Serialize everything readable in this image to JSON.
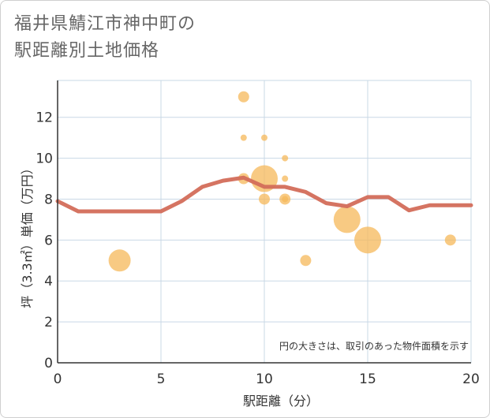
{
  "chart_data": {
    "type": "scatter",
    "title_lines": [
      "福井県鯖江市神中町の",
      "駅距離別土地価格"
    ],
    "xlabel": "駅距離（分）",
    "ylabel": "坪（3.3㎡）単価（万円）",
    "xlim": [
      0,
      20
    ],
    "ylim": [
      0,
      13.8
    ],
    "x_ticks": [
      0,
      5,
      10,
      15,
      20
    ],
    "y_ticks": [
      0,
      2,
      4,
      6,
      8,
      10,
      12
    ],
    "grid": true,
    "annotation": "円の大きさは、取引のあった物件面積を示す",
    "colors": {
      "bubble": "#f5b85a",
      "line": "#d36d5a",
      "grid": "#c9d8e6",
      "axis": "#333333"
    },
    "bubbles": [
      {
        "x": 3,
        "y": 5,
        "size": 4
      },
      {
        "x": 9,
        "y": 13,
        "size": 2
      },
      {
        "x": 9,
        "y": 11,
        "size": 1
      },
      {
        "x": 9,
        "y": 9,
        "size": 2
      },
      {
        "x": 10,
        "y": 11,
        "size": 1
      },
      {
        "x": 10,
        "y": 9,
        "size": 5
      },
      {
        "x": 10,
        "y": 8,
        "size": 2
      },
      {
        "x": 11,
        "y": 10,
        "size": 1
      },
      {
        "x": 11,
        "y": 9,
        "size": 1
      },
      {
        "x": 11,
        "y": 8,
        "size": 2
      },
      {
        "x": 11,
        "y": 8,
        "size": 1
      },
      {
        "x": 12,
        "y": 5,
        "size": 2
      },
      {
        "x": 14,
        "y": 7,
        "size": 5
      },
      {
        "x": 15,
        "y": 6,
        "size": 5
      },
      {
        "x": 19,
        "y": 6,
        "size": 2
      }
    ],
    "trend_line": {
      "x": [
        0,
        1,
        2,
        3,
        4,
        5,
        6,
        7,
        8,
        9,
        10,
        11,
        12,
        13,
        14,
        15,
        16,
        17,
        18,
        19,
        20
      ],
      "y": [
        7.9,
        7.4,
        7.4,
        7.4,
        7.4,
        7.4,
        7.9,
        8.6,
        8.9,
        9.05,
        8.6,
        8.6,
        8.35,
        7.8,
        7.65,
        8.1,
        8.1,
        7.45,
        7.7,
        7.7,
        7.7
      ]
    }
  }
}
